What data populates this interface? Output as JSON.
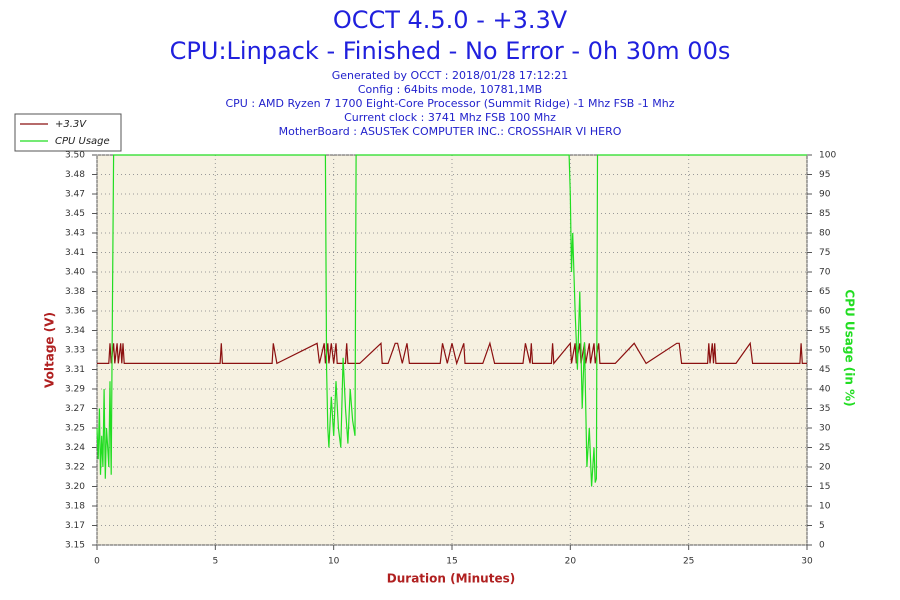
{
  "chart_data": {
    "type": "line",
    "title": "OCCT 4.5.0 - +3.3V",
    "subtitle": "CPU:Linpack - Finished - No Error - 0h 30m 00s",
    "info": [
      "Generated by OCCT : 2018/01/28 17:12:21",
      "Config : 64bits mode, 10781,1MB",
      "CPU : AMD Ryzen 7 1700 Eight-Core Processor (Summit Ridge) -1 Mhz FSB -1 Mhz",
      "Current clock : 3741 Mhz FSB 100 Mhz",
      "MotherBoard : ASUSTeK COMPUTER INC.: CROSSHAIR VI HERO"
    ],
    "xlabel": "Duration (Minutes)",
    "ylabel": "Voltage (V)",
    "y2label": "CPU Usage (in %)",
    "xlim": [
      0,
      30
    ],
    "xticks": [
      0,
      5,
      10,
      15,
      20,
      25,
      30
    ],
    "ylim": [
      3.15,
      3.5
    ],
    "yticks": [
      {
        "value": 3.15,
        "label": "3.15"
      },
      {
        "value": 3.1675,
        "label": "3.17"
      },
      {
        "value": 3.185,
        "label": "3.18"
      },
      {
        "value": 3.2025,
        "label": "3.20"
      },
      {
        "value": 3.22,
        "label": "3.22"
      },
      {
        "value": 3.2375,
        "label": "3.24"
      },
      {
        "value": 3.255,
        "label": "3.25"
      },
      {
        "value": 3.2725,
        "label": "3.27"
      },
      {
        "value": 3.29,
        "label": "3.29"
      },
      {
        "value": 3.3075,
        "label": "3.31"
      },
      {
        "value": 3.325,
        "label": "3.33"
      },
      {
        "value": 3.3425,
        "label": "3.34"
      },
      {
        "value": 3.36,
        "label": "3.36"
      },
      {
        "value": 3.3775,
        "label": "3.38"
      },
      {
        "value": 3.395,
        "label": "3.40"
      },
      {
        "value": 3.4125,
        "label": "3.41"
      },
      {
        "value": 3.43,
        "label": "3.43"
      },
      {
        "value": 3.4475,
        "label": "3.45"
      },
      {
        "value": 3.465,
        "label": "3.47"
      },
      {
        "value": 3.4825,
        "label": "3.48"
      },
      {
        "value": 3.5,
        "label": "3.50"
      }
    ],
    "y2lim": [
      0,
      100
    ],
    "y2ticks": [
      0,
      5,
      10,
      15,
      20,
      25,
      30,
      35,
      40,
      45,
      50,
      55,
      60,
      65,
      70,
      75,
      80,
      85,
      90,
      95,
      100
    ],
    "grid": true,
    "legend": "top-left",
    "series": [
      {
        "name": "+3.3V",
        "color": "#8b1010",
        "x": [
          0,
          0.5,
          0.55,
          0.6,
          0.7,
          0.75,
          0.85,
          0.9,
          1.0,
          1.05,
          1.1,
          1.15,
          5.2,
          5.25,
          5.3,
          7.4,
          7.45,
          7.6,
          9.3,
          9.4,
          9.6,
          9.65,
          9.75,
          9.8,
          9.9,
          10.0,
          10.1,
          10.15,
          10.5,
          10.55,
          10.6,
          11.1,
          12.0,
          12.05,
          12.3,
          12.6,
          12.7,
          12.9,
          13.1,
          13.2,
          14.5,
          14.6,
          14.8,
          15.0,
          15.2,
          15.5,
          15.55,
          16.3,
          16.6,
          16.8,
          18.0,
          18.1,
          18.3,
          18.35,
          18.4,
          19.2,
          19.25,
          19.3,
          20.0,
          20.05,
          20.2,
          20.25,
          20.4,
          20.45,
          20.6,
          20.65,
          20.8,
          20.85,
          21.0,
          21.05,
          21.2,
          21.25,
          21.9,
          22.7,
          23.2,
          24.5,
          24.6,
          24.7,
          25.8,
          25.85,
          25.9,
          26.0,
          26.05,
          26.1,
          26.15,
          27.0,
          27.6,
          27.7,
          29.7,
          29.75,
          29.8,
          30
        ],
        "values": [
          3.313,
          3.313,
          3.331,
          3.313,
          3.331,
          3.313,
          3.331,
          3.313,
          3.331,
          3.313,
          3.331,
          3.313,
          3.313,
          3.331,
          3.313,
          3.313,
          3.331,
          3.313,
          3.331,
          3.313,
          3.331,
          3.313,
          3.331,
          3.313,
          3.331,
          3.313,
          3.331,
          3.313,
          3.313,
          3.331,
          3.313,
          3.313,
          3.331,
          3.313,
          3.313,
          3.331,
          3.331,
          3.313,
          3.331,
          3.313,
          3.313,
          3.331,
          3.313,
          3.331,
          3.313,
          3.331,
          3.313,
          3.313,
          3.331,
          3.313,
          3.313,
          3.331,
          3.313,
          3.331,
          3.313,
          3.313,
          3.331,
          3.313,
          3.331,
          3.313,
          3.331,
          3.313,
          3.331,
          3.313,
          3.331,
          3.313,
          3.331,
          3.313,
          3.331,
          3.313,
          3.331,
          3.313,
          3.313,
          3.331,
          3.313,
          3.331,
          3.331,
          3.313,
          3.313,
          3.331,
          3.313,
          3.331,
          3.313,
          3.331,
          3.313,
          3.313,
          3.331,
          3.313,
          3.313,
          3.331,
          3.313,
          3.313
        ]
      },
      {
        "name": "CPU Usage",
        "color": "#22dd22",
        "axis": "y2",
        "x": [
          0,
          0.05,
          0.1,
          0.15,
          0.2,
          0.25,
          0.3,
          0.35,
          0.4,
          0.45,
          0.5,
          0.55,
          0.6,
          0.65,
          0.7,
          9.65,
          9.7,
          9.75,
          9.8,
          9.9,
          10.0,
          10.1,
          10.2,
          10.3,
          10.4,
          10.5,
          10.6,
          10.7,
          10.8,
          10.9,
          10.95,
          19.95,
          20.0,
          20.05,
          20.1,
          20.2,
          20.3,
          20.4,
          20.5,
          20.6,
          20.7,
          20.8,
          20.9,
          21.0,
          21.05,
          21.1,
          21.15,
          30
        ],
        "values": [
          30,
          22,
          35,
          18,
          28,
          20,
          40,
          17,
          30,
          25,
          20,
          42,
          18,
          60,
          100,
          100,
          45,
          30,
          25,
          38,
          28,
          42,
          30,
          25,
          48,
          35,
          26,
          40,
          32,
          28,
          100,
          100,
          90,
          70,
          80,
          60,
          45,
          65,
          35,
          52,
          20,
          30,
          15,
          25,
          16,
          17,
          100,
          100
        ]
      }
    ]
  }
}
